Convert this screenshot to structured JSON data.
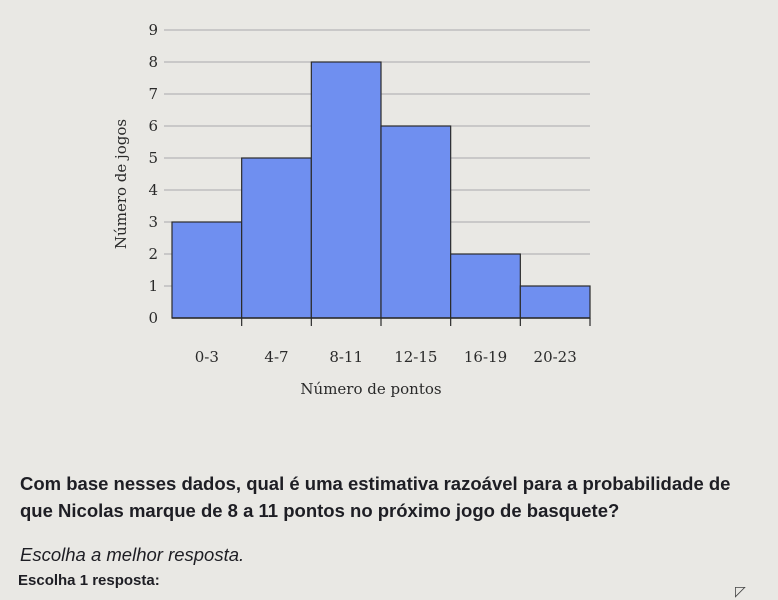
{
  "chart_data": {
    "type": "bar",
    "categories": [
      "0-3",
      "4-7",
      "8-11",
      "12-15",
      "16-19",
      "20-23"
    ],
    "values": [
      3,
      5,
      8,
      6,
      2,
      1
    ],
    "xlabel": "Número de pontos",
    "ylabel": "Número de jogos",
    "ylim": [
      0,
      9
    ],
    "yticks": [
      0,
      1,
      2,
      3,
      4,
      5,
      6,
      7,
      8,
      9
    ],
    "grid": true,
    "bar_color": "#6f8ff0",
    "bar_edge_color": "#2b2b2b",
    "grid_color": "#a9a9ad"
  },
  "question": {
    "text": "Com base nesses dados, qual é uma estimativa razoável para a probabilidade de que Nicolas marque de 8 a 11 pontos no próximo jogo de basquete?",
    "instruction": "Escolha a melhor resposta.",
    "answer_label": "Escolha 1 resposta:"
  }
}
